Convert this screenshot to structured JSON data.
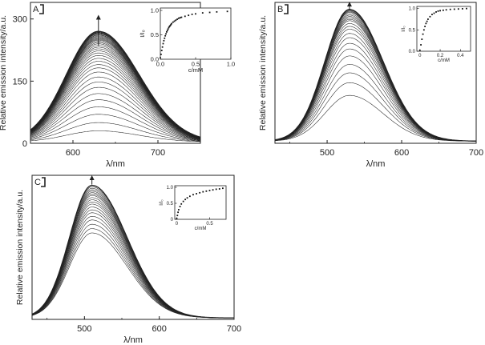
{
  "figure": {
    "colors": {
      "curve": "#222222",
      "axis": "#222222",
      "marker": "#111111",
      "background": "#ffffff"
    }
  },
  "chart_data": [
    {
      "panel": "A",
      "type": "line",
      "xlabel": "λ/nm",
      "ylabel": "Relative emission intensity/a.u.",
      "xlim": [
        550,
        750
      ],
      "ylim": [
        0,
        340
      ],
      "xticks": [
        600,
        700
      ],
      "yticks": [
        0,
        150,
        300
      ],
      "series_shape": {
        "peak_x": 630,
        "baseline": 3,
        "sigma_left": 38,
        "sigma_right": 48
      },
      "series_peaks": [
        30,
        50,
        70,
        88,
        105,
        120,
        135,
        148,
        160,
        172,
        182,
        190,
        198,
        205,
        212,
        218,
        223,
        228,
        232,
        236,
        240,
        243,
        246,
        249,
        251,
        253,
        255,
        257,
        259,
        261,
        262,
        264,
        265,
        266,
        267,
        268,
        269,
        270
      ],
      "arrow": "up",
      "inset": {
        "type": "scatter",
        "xlabel": "c/mM",
        "ylabel": "I/I₀",
        "xlim": [
          0,
          1.0
        ],
        "ylim": [
          0,
          1.05
        ],
        "xticks": [
          0,
          0.5,
          1.0
        ],
        "xtick_labels": [
          "0.0",
          "0.5",
          "1.0"
        ],
        "yticks": [
          0,
          0.5,
          1.0
        ],
        "ytick_labels": [
          "0.0",
          "0.5",
          "1.0"
        ],
        "x": [
          0.0,
          0.01,
          0.02,
          0.03,
          0.04,
          0.05,
          0.06,
          0.07,
          0.08,
          0.09,
          0.1,
          0.11,
          0.12,
          0.13,
          0.14,
          0.15,
          0.16,
          0.18,
          0.2,
          0.22,
          0.24,
          0.26,
          0.28,
          0.3,
          0.35,
          0.4,
          0.45,
          0.5,
          0.6,
          0.7,
          0.8,
          0.95
        ],
        "y": [
          0.03,
          0.1,
          0.18,
          0.25,
          0.32,
          0.38,
          0.43,
          0.48,
          0.52,
          0.56,
          0.59,
          0.62,
          0.65,
          0.67,
          0.69,
          0.71,
          0.73,
          0.76,
          0.78,
          0.8,
          0.82,
          0.84,
          0.85,
          0.86,
          0.88,
          0.9,
          0.92,
          0.93,
          0.95,
          0.96,
          0.97,
          0.98
        ]
      }
    },
    {
      "panel": "B",
      "type": "line",
      "xlabel": "λ/nm",
      "ylabel": "Relative emission intensity/a.u.",
      "xlim": [
        430,
        700
      ],
      "ylim": [
        0,
        1.0
      ],
      "xticks": [
        500,
        600,
        700
      ],
      "yticks": [],
      "series_shape": {
        "peak_x": 530,
        "baseline": 0.015,
        "sigma_left": 33,
        "sigma_right": 45
      },
      "series_peaks": [
        0.34,
        0.43,
        0.5,
        0.56,
        0.62,
        0.67,
        0.71,
        0.75,
        0.78,
        0.81,
        0.83,
        0.85,
        0.87,
        0.88,
        0.89,
        0.9,
        0.91,
        0.92,
        0.93,
        0.935,
        0.94,
        0.945,
        0.95
      ],
      "arrow": "up",
      "inset": {
        "type": "scatter",
        "xlabel": "c/mM",
        "ylabel": "I/I₀",
        "xlim": [
          -0.03,
          0.5
        ],
        "ylim": [
          0,
          1.05
        ],
        "xticks": [
          0,
          0.2,
          0.4
        ],
        "xtick_labels": [
          "0",
          "0.2",
          "0.4"
        ],
        "yticks": [
          0,
          0.5,
          1.0
        ],
        "ytick_labels": [
          "0.0",
          "0.5",
          "1.0"
        ],
        "x": [
          0.0,
          0.01,
          0.02,
          0.03,
          0.04,
          0.05,
          0.06,
          0.07,
          0.08,
          0.1,
          0.12,
          0.14,
          0.16,
          0.18,
          0.2,
          0.23,
          0.26,
          0.3,
          0.34,
          0.38,
          0.42,
          0.46
        ],
        "y": [
          0.02,
          0.15,
          0.28,
          0.4,
          0.5,
          0.58,
          0.65,
          0.7,
          0.75,
          0.81,
          0.86,
          0.89,
          0.92,
          0.94,
          0.95,
          0.96,
          0.97,
          0.98,
          0.985,
          0.99,
          0.995,
          1.0
        ]
      }
    },
    {
      "panel": "C",
      "type": "line",
      "xlabel": "λ/nm",
      "ylabel": "Relative emission intensity/a.u.",
      "xlim": [
        430,
        700
      ],
      "ylim": [
        0,
        1.0
      ],
      "xticks": [
        500,
        600,
        700
      ],
      "yticks": [],
      "series_shape": {
        "peak_x": 510,
        "baseline": 0.01,
        "sigma_left": 30,
        "sigma_right": 47
      },
      "series_peaks": [
        0.6,
        0.63,
        0.66,
        0.69,
        0.715,
        0.74,
        0.76,
        0.78,
        0.8,
        0.815,
        0.83,
        0.845,
        0.86,
        0.87,
        0.88,
        0.89,
        0.9,
        0.91,
        0.92,
        0.93
      ],
      "arrow": "up",
      "inset": {
        "type": "scatter",
        "xlabel": "c/mM",
        "ylabel": "I/I₀",
        "xlim": [
          -0.03,
          0.75
        ],
        "ylim": [
          0,
          1.05
        ],
        "xticks": [
          0,
          0.5
        ],
        "xtick_labels": [
          "0",
          "0.5"
        ],
        "yticks": [
          0,
          0.5,
          1.0
        ],
        "ytick_labels": [
          "0",
          "0.5",
          "1.0"
        ],
        "x": [
          0.0,
          0.01,
          0.02,
          0.03,
          0.05,
          0.07,
          0.1,
          0.13,
          0.16,
          0.2,
          0.25,
          0.3,
          0.35,
          0.4,
          0.45,
          0.5,
          0.55,
          0.6,
          0.65,
          0.7
        ],
        "y": [
          0.03,
          0.12,
          0.22,
          0.3,
          0.4,
          0.48,
          0.56,
          0.62,
          0.67,
          0.72,
          0.77,
          0.8,
          0.83,
          0.86,
          0.88,
          0.9,
          0.92,
          0.94,
          0.95,
          0.97
        ]
      }
    }
  ]
}
